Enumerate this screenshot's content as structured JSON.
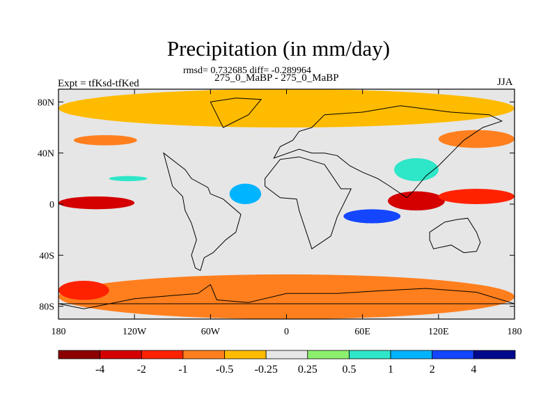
{
  "chart_data": {
    "type": "heatmap",
    "title": "Precipitation (in mm/day)",
    "stats_line": "rmsd= 0.732685 diff= -0.289964",
    "subtitle": "275_0_MaBP - 275_0_MaBP",
    "left_label": "Expt = tfKsd-tfKed",
    "right_label": "JJA",
    "x_axis": {
      "range": [
        -180,
        180
      ],
      "ticks": [
        -180,
        -120,
        -60,
        0,
        60,
        120,
        180
      ],
      "tick_labels": [
        "180",
        "120W",
        "60W",
        "0",
        "60E",
        "120E",
        "180"
      ]
    },
    "y_axis": {
      "range": [
        -90,
        90
      ],
      "ticks": [
        80,
        40,
        0,
        -40,
        -80
      ],
      "tick_labels": [
        "80N",
        "40N",
        "0",
        "40S",
        "80S"
      ]
    },
    "colorbar": {
      "levels": [
        -4,
        -2,
        -1,
        -0.5,
        -0.25,
        0.25,
        0.5,
        1,
        2,
        4
      ],
      "level_labels": [
        "-4",
        "-2",
        "-1",
        "-0.5",
        "-0.25",
        "0.25",
        "0.5",
        "1",
        "2",
        "4"
      ],
      "colors": [
        "#8b0000",
        "#d40000",
        "#ff2200",
        "#ff7f1e",
        "#ffbb00",
        "#e6e6e6",
        "#8cf06e",
        "#2ee6c8",
        "#00b4ff",
        "#1445ff",
        "#000a8c"
      ]
    },
    "fields": {
      "background_level_index": 5,
      "bands": [
        {
          "region": "north-polar",
          "lon": [
            -180,
            180
          ],
          "lat": [
            60,
            90
          ],
          "level_index": 4
        },
        {
          "region": "north-pacific-storm-track",
          "lon": [
            -168,
            -118
          ],
          "lat": [
            46,
            54
          ],
          "level_index": 3
        },
        {
          "region": "north-pacific-east",
          "lon": [
            120,
            180
          ],
          "lat": [
            44,
            58
          ],
          "level_index": 3
        },
        {
          "region": "equatorial-pacific-dry",
          "lon": [
            -180,
            -120
          ],
          "lat": [
            -4,
            6
          ],
          "level_index": 1
        },
        {
          "region": "indian-ocean-dry",
          "lon": [
            80,
            125
          ],
          "lat": [
            -5,
            10
          ],
          "level_index": 1
        },
        {
          "region": "west-pacific-dry",
          "lon": [
            120,
            180
          ],
          "lat": [
            0,
            12
          ],
          "level_index": 2
        },
        {
          "region": "southern-pacific-wet-patch",
          "lon": [
            -140,
            -110
          ],
          "lat": [
            18,
            22
          ],
          "level_index": 7
        },
        {
          "region": "tropical-atlantic-wet",
          "lon": [
            -45,
            -20
          ],
          "lat": [
            0,
            16
          ],
          "level_index": 8
        },
        {
          "region": "indian-ocean-wet",
          "lon": [
            45,
            90
          ],
          "lat": [
            -15,
            -4
          ],
          "level_index": 9
        },
        {
          "region": "east-asia-wet",
          "lon": [
            85,
            120
          ],
          "lat": [
            18,
            36
          ],
          "level_index": 7
        },
        {
          "region": "southern-ocean-dry",
          "lon": [
            -180,
            180
          ],
          "lat": [
            -90,
            -55
          ],
          "level_index": 3
        },
        {
          "region": "south-pacific-dry",
          "lon": [
            -180,
            -140
          ],
          "lat": [
            -75,
            -60
          ],
          "level_index": 2
        }
      ]
    }
  }
}
